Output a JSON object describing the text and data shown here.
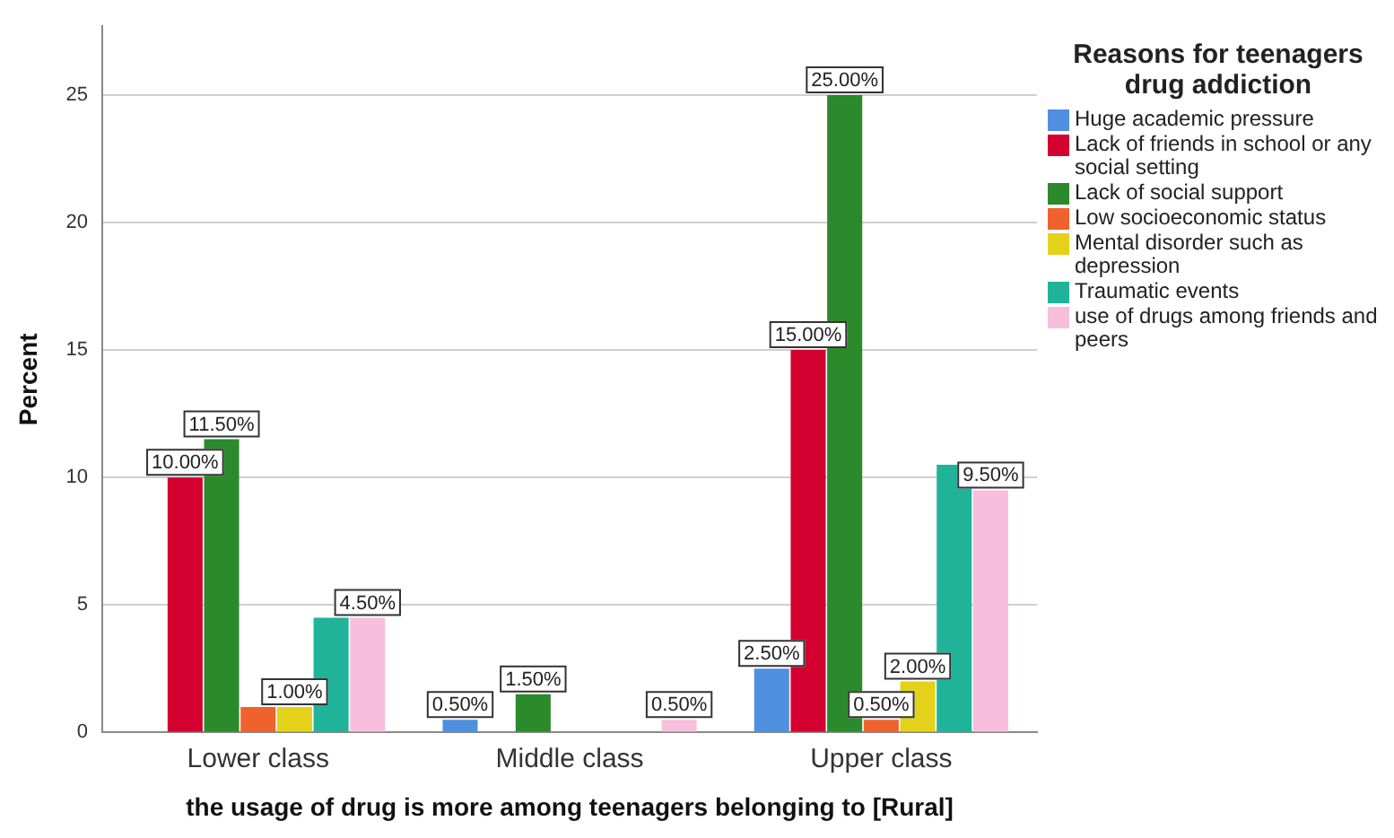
{
  "chart_data": {
    "type": "bar",
    "xlabel": "the usage of drug is more among teenagers belonging to [Rural]",
    "ylabel": "Percent",
    "legend_title": "Reasons for teenagers drug addiction",
    "legend": "right",
    "grid": "y",
    "categories": [
      "Lower class",
      "Middle class",
      "Upper class"
    ],
    "ylim": [
      0,
      27.7
    ],
    "yticks": [
      0,
      5,
      10,
      15,
      20,
      25
    ],
    "series": [
      {
        "name": "Huge academic pressure",
        "color": "#4f8fe0",
        "values": [
          null,
          0.5,
          2.5
        ],
        "value_labels": [
          null,
          "0.50%",
          "2.50%"
        ]
      },
      {
        "name": "Lack of friends in school or any social setting",
        "color": "#d4002f",
        "values": [
          10,
          null,
          15
        ],
        "value_labels": [
          "10.00%",
          null,
          "15.00%"
        ]
      },
      {
        "name": "Lack of social support",
        "color": "#2b8a2b",
        "values": [
          11.5,
          1.5,
          25
        ],
        "value_labels": [
          "11.50%",
          "1.50%",
          "25.00%"
        ]
      },
      {
        "name": "Low socioeconomic status",
        "color": "#f0622d",
        "values": [
          1,
          null,
          0.5
        ],
        "value_labels": [
          null,
          null,
          "0.50%"
        ]
      },
      {
        "name": "Mental disorder such as depression",
        "color": "#e4d21a",
        "values": [
          1,
          null,
          2
        ],
        "value_labels": [
          "1.00%",
          null,
          "2.00%"
        ]
      },
      {
        "name": "Traumatic events",
        "color": "#1fb39a",
        "values": [
          4.5,
          null,
          10.5
        ],
        "value_labels": [
          null,
          null,
          null
        ]
      },
      {
        "name": "use of drugs among friends and peers",
        "color": "#f7bfdc",
        "values": [
          4.5,
          0.5,
          9.5
        ],
        "value_labels": [
          "4.50%",
          "0.50%",
          "9.50%"
        ]
      }
    ]
  }
}
